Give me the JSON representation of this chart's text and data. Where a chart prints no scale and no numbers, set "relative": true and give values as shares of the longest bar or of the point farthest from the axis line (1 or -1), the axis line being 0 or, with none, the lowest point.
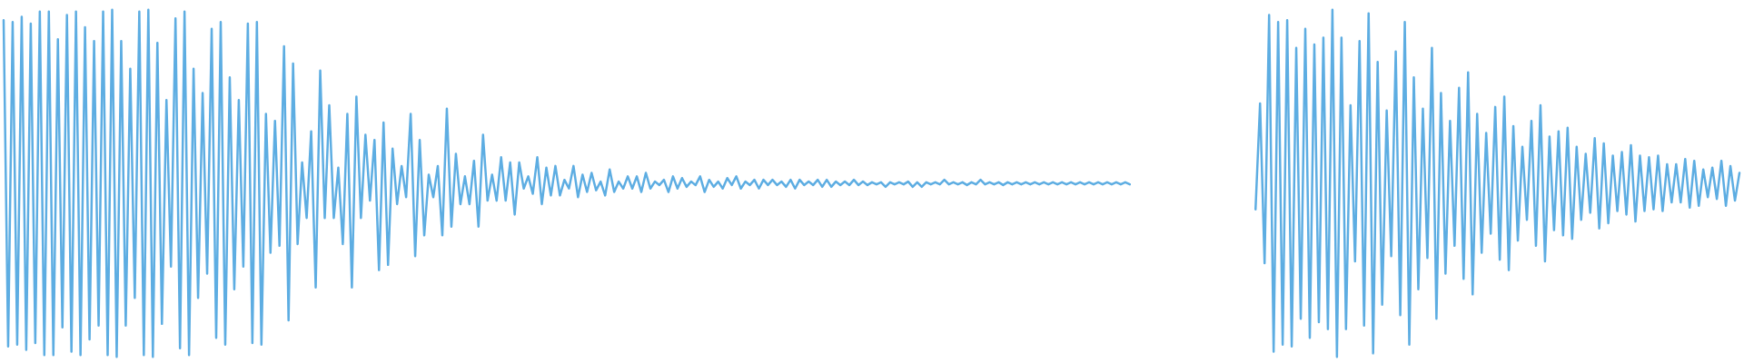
{
  "chart_data": [
    {
      "type": "line",
      "relative": true,
      "tick_labels": false,
      "categories": [
        null,
        null,
        null,
        null,
        null,
        null,
        null,
        null,
        null,
        null,
        null,
        null,
        null,
        null,
        null,
        null,
        null,
        null,
        null,
        null,
        null,
        null,
        null,
        null,
        null,
        null,
        null,
        null,
        null,
        null,
        null,
        null,
        null,
        null,
        null,
        null,
        null,
        null,
        null,
        null,
        null,
        null,
        null,
        null,
        null,
        null,
        null,
        null,
        null,
        null,
        null,
        null,
        null,
        null,
        null,
        null,
        null,
        null,
        null,
        null,
        null,
        null,
        null,
        null,
        null,
        null,
        null,
        null,
        null,
        null,
        null,
        null,
        null,
        null,
        null,
        null,
        null,
        null,
        null,
        null,
        null,
        null,
        null,
        null,
        null,
        null,
        null,
        null,
        null,
        null,
        null,
        null,
        null,
        null,
        null,
        null,
        null,
        null,
        null,
        null,
        null,
        null,
        null,
        null,
        null,
        null,
        null,
        null,
        null,
        null,
        null,
        null,
        null,
        null,
        null,
        null,
        null,
        null,
        null,
        null,
        null,
        null,
        null,
        null,
        null,
        null,
        null,
        null,
        null,
        null,
        null,
        null,
        null,
        null,
        null,
        null,
        null,
        null,
        null,
        null,
        null,
        null,
        null,
        null,
        null,
        null,
        null,
        null,
        null,
        null,
        null,
        null,
        null,
        null,
        null,
        null,
        null,
        null,
        null,
        null,
        null,
        null,
        null,
        null,
        null,
        null,
        null,
        null,
        null,
        null,
        null,
        null,
        null,
        null,
        null,
        null,
        null,
        null,
        null,
        null,
        null,
        null,
        null,
        null,
        null,
        null,
        null,
        null,
        null,
        null,
        null,
        null,
        null,
        null,
        null,
        null,
        null,
        null,
        null,
        null,
        null,
        null,
        null,
        null,
        null,
        null,
        null,
        null,
        null,
        null,
        null,
        null,
        null,
        null,
        null,
        null,
        null,
        null,
        null,
        null,
        null,
        null,
        null,
        null,
        null,
        null,
        null,
        null,
        null,
        null,
        null,
        null,
        null,
        null,
        null,
        null,
        null,
        null,
        null,
        null,
        null,
        null,
        null,
        null,
        null,
        null,
        null,
        null,
        null,
        null
      ],
      "series": [
        {
          "color": "#5dade2",
          "values": [
            0.97,
            0.03,
            0.965,
            0.035,
            0.98,
            0.02,
            0.96,
            0.04,
            0.995,
            0.005,
            0.995,
            0.005,
            0.915,
            0.085,
            0.985,
            0.015,
            0.995,
            0.005,
            0.95,
            0.05,
            0.91,
            0.09,
            0.995,
            0.005,
            1,
            0,
            0.91,
            0.09,
            0.83,
            0.17,
            0.995,
            0.005,
            1,
            0,
            0.905,
            0.095,
            0.74,
            0.26,
            0.975,
            0.025,
            0.995,
            0.005,
            0.83,
            0.17,
            0.76,
            0.24,
            0.945,
            0.055,
            0.965,
            0.035,
            0.805,
            0.195,
            0.74,
            0.26,
            0.96,
            0.04,
            0.965,
            0.035,
            0.7,
            0.3,
            0.68,
            0.32,
            0.895,
            0.105,
            0.845,
            0.325,
            0.56,
            0.4,
            0.65,
            0.2,
            0.825,
            0.4,
            0.725,
            0.4,
            0.545,
            0.325,
            0.7,
            0.2,
            0.75,
            0.4,
            0.64,
            0.45,
            0.625,
            0.25,
            0.675,
            0.265,
            0.6,
            0.44,
            0.55,
            0.46,
            0.7,
            0.29,
            0.625,
            0.35,
            0.525,
            0.46,
            0.55,
            0.35,
            0.715,
            0.375,
            0.585,
            0.44,
            0.52,
            0.44,
            0.565,
            0.375,
            0.64,
            0.45,
            0.525,
            0.45,
            0.575,
            0.45,
            0.56,
            0.41,
            0.56,
            0.485,
            0.52,
            0.47,
            0.575,
            0.44,
            0.545,
            0.465,
            0.55,
            0.465,
            0.51,
            0.485,
            0.55,
            0.46,
            0.525,
            0.475,
            0.53,
            0.48,
            0.505,
            0.465,
            0.54,
            0.475,
            0.505,
            0.485,
            0.52,
            0.485,
            0.52,
            0.475,
            0.53,
            0.485,
            0.505,
            0.495,
            0.51,
            0.475,
            0.52,
            0.485,
            0.515,
            0.49,
            0.505,
            0.495,
            0.52,
            0.475,
            0.51,
            0.49,
            0.505,
            0.485,
            0.515,
            0.495,
            0.52,
            0.485,
            0.505,
            0.495,
            0.51,
            0.485,
            0.51,
            0.495,
            0.51,
            0.495,
            0.505,
            0.49,
            0.51,
            0.485,
            0.51,
            0.495,
            0.505,
            0.495,
            0.51,
            0.49,
            0.51,
            0.49,
            0.505,
            0.495,
            0.505,
            0.495,
            0.51,
            0.495,
            0.505,
            0.495,
            0.503,
            0.497,
            0.503,
            0.49,
            0.503,
            0.497,
            0.503,
            0.497,
            0.505,
            0.49,
            0.503,
            0.49,
            0.503,
            0.497,
            0.503,
            0.497,
            0.51,
            0.497,
            0.503,
            0.497,
            0.503,
            0.495,
            0.503,
            0.497,
            0.51,
            0.497,
            0.503,
            0.497,
            0.503,
            0.495,
            0.503,
            0.497,
            0.503,
            0.497,
            0.503,
            0.497,
            0.503,
            0.497,
            0.503,
            0.497,
            0.503,
            0.497,
            0.503,
            0.497,
            0.503,
            0.497,
            0.503,
            0.497,
            0.503,
            0.497,
            0.503,
            0.497,
            0.503,
            0.497,
            0.503,
            0.497,
            0.503,
            0.497
          ]
        }
      ]
    },
    {
      "type": "line",
      "relative": true,
      "tick_labels": false,
      "categories": [
        null,
        null,
        null,
        null,
        null,
        null,
        null,
        null,
        null,
        null,
        null,
        null,
        null,
        null,
        null,
        null,
        null,
        null,
        null,
        null,
        null,
        null,
        null,
        null,
        null,
        null,
        null,
        null,
        null,
        null,
        null,
        null,
        null,
        null,
        null,
        null,
        null,
        null,
        null,
        null,
        null,
        null,
        null,
        null,
        null,
        null,
        null,
        null,
        null,
        null,
        null,
        null,
        null,
        null,
        null,
        null,
        null,
        null,
        null,
        null,
        null,
        null,
        null,
        null,
        null,
        null,
        null,
        null,
        null,
        null,
        null,
        null,
        null,
        null,
        null,
        null,
        null,
        null,
        null,
        null,
        null,
        null,
        null,
        null,
        null,
        null,
        null,
        null,
        null,
        null,
        null,
        null,
        null,
        null,
        null,
        null,
        null,
        null,
        null,
        null,
        null,
        null,
        null,
        null,
        null,
        null,
        null,
        null
      ],
      "series": [
        {
          "color": "#5dade2",
          "values": [
            0.425,
            0.73,
            0.27,
            0.985,
            0.015,
            0.965,
            0.035,
            0.97,
            0.03,
            0.89,
            0.11,
            0.945,
            0.055,
            0.9,
            0.1,
            0.92,
            0.08,
            1,
            0,
            0.92,
            0.08,
            0.725,
            0.275,
            0.91,
            0.09,
            0.99,
            0.01,
            0.85,
            0.15,
            0.71,
            0.29,
            0.88,
            0.12,
            0.965,
            0.035,
            0.805,
            0.195,
            0.715,
            0.285,
            0.89,
            0.11,
            0.76,
            0.24,
            0.68,
            0.32,
            0.775,
            0.225,
            0.82,
            0.18,
            0.7,
            0.3,
            0.645,
            0.355,
            0.72,
            0.28,
            0.75,
            0.25,
            0.665,
            0.335,
            0.605,
            0.395,
            0.68,
            0.32,
            0.725,
            0.275,
            0.635,
            0.365,
            0.65,
            0.35,
            0.66,
            0.34,
            0.605,
            0.395,
            0.585,
            0.415,
            0.63,
            0.37,
            0.615,
            0.385,
            0.58,
            0.42,
            0.59,
            0.41,
            0.61,
            0.39,
            0.58,
            0.42,
            0.575,
            0.425,
            0.58,
            0.42,
            0.555,
            0.445,
            0.555,
            0.445,
            0.57,
            0.43,
            0.565,
            0.435,
            0.54,
            0.46,
            0.545,
            0.455,
            0.565,
            0.435,
            0.55,
            0.45,
            0.53
          ]
        }
      ]
    }
  ]
}
